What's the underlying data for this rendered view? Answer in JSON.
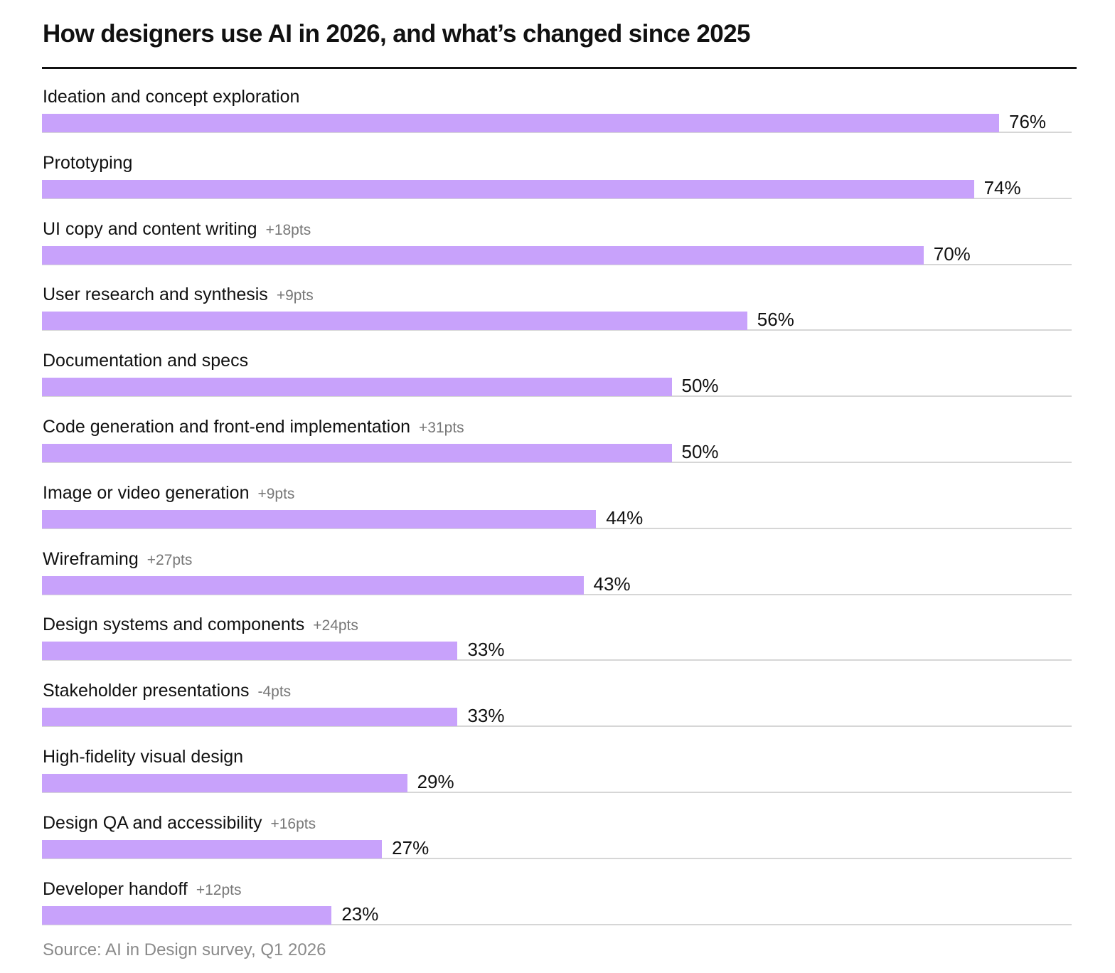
{
  "colors": {
    "bar": "#c8a2fb",
    "text": "#111111",
    "change_text": "#777777",
    "source_text": "#8a8a8a",
    "rule": "#111111",
    "baseline": "#d6d6d6"
  },
  "footer": {
    "source": "Source: AI in Design survey, Q1 2026"
  },
  "chart_data": {
    "type": "bar",
    "orientation": "horizontal",
    "title": "How designers use AI in 2026, and what’s changed since 2025",
    "xlim": [
      0,
      80
    ],
    "grid": false,
    "legend": "none",
    "categories": [
      "Ideation and concept exploration",
      "Prototyping",
      "UI copy and content writing",
      "User research and synthesis",
      "Documentation and specs",
      "Code generation and front-end implementation",
      "Image or video generation",
      "Wireframing",
      "Design systems and components",
      "Stakeholder presentations",
      "High-fidelity visual design",
      "Design QA and accessibility",
      "Developer handoff"
    ],
    "values": [
      76,
      74,
      70,
      56,
      50,
      50,
      44,
      43,
      33,
      33,
      29,
      27,
      23
    ],
    "value_labels": [
      "76%",
      "74%",
      "70%",
      "56%",
      "50%",
      "50%",
      "44%",
      "43%",
      "33%",
      "33%",
      "29%",
      "27%",
      "23%"
    ],
    "changes": [
      "",
      "",
      "+18pts",
      "+9pts",
      "",
      "+31pts",
      "+9pts",
      "+27pts",
      "+24pts",
      "-4pts",
      "",
      "+16pts",
      "+12pts"
    ]
  }
}
